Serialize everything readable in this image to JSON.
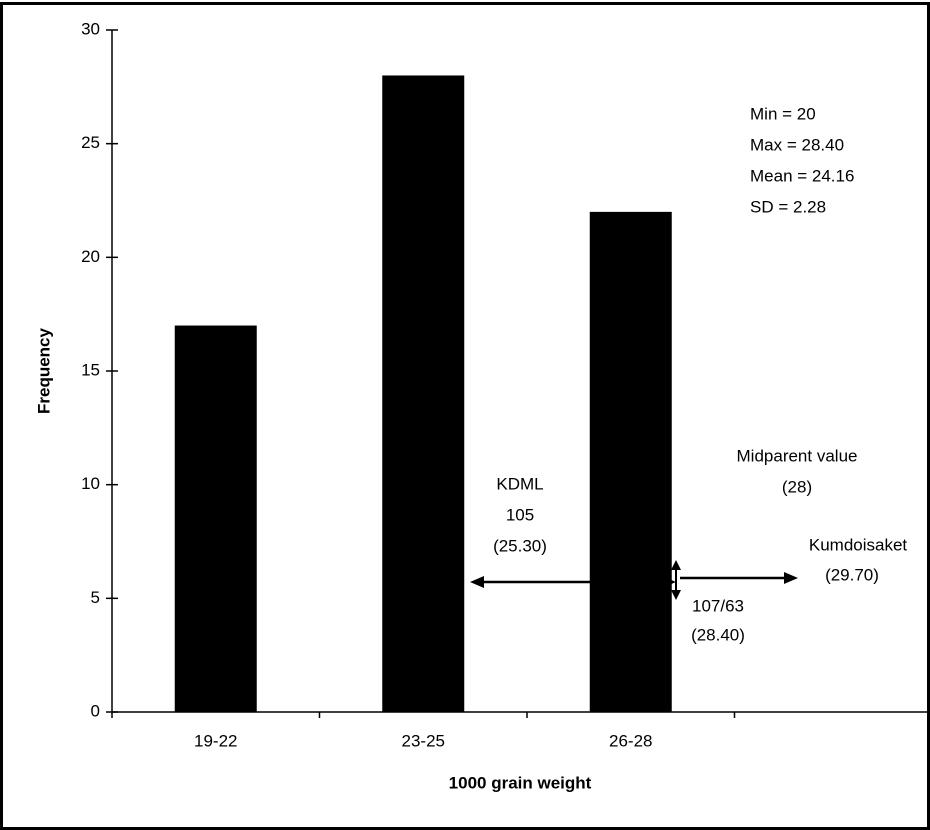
{
  "chart_data": {
    "type": "bar",
    "x_label": "1000 grain weight",
    "y_label": "Frequency",
    "categories": [
      "19-22",
      "23-25",
      "26-28",
      null
    ],
    "values": [
      17,
      28,
      22,
      null
    ],
    "color": "#000000",
    "ylim": [
      0,
      30
    ],
    "yticks": [
      0,
      5,
      10,
      15,
      20,
      25,
      30
    ],
    "annotations": {
      "stats": [
        "Min = 20",
        "Max = 28.40",
        "Mean = 24.16",
        "SD = 2.28"
      ],
      "kdml": [
        "KDML",
        "105",
        "(25.30)"
      ],
      "midparent": [
        "Midparent value",
        "(28)"
      ],
      "kumdoisaket": [
        "Kumdoisaket",
        "(29.70)"
      ],
      "line": [
        "107/63",
        "(28.40)"
      ]
    }
  }
}
